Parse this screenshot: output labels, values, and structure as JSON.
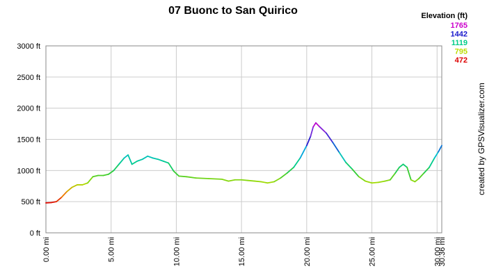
{
  "chart_data": {
    "type": "line",
    "title": "07 Buonc to San Quirico",
    "xlabel": "",
    "ylabel": "",
    "x_unit": "mi",
    "y_unit": "ft",
    "xlim": [
      0,
      30.36
    ],
    "ylim": [
      0,
      3000
    ],
    "x_ticks": [
      0,
      5,
      10,
      15,
      20,
      25,
      30,
      30.36
    ],
    "x_tick_labels": [
      "0.00 mi",
      "5.00 mi",
      "10.00 mi",
      "15.00 mi",
      "20.00 mi",
      "25.00 mi",
      "30.00 mi",
      "30.36 mi"
    ],
    "y_ticks": [
      0,
      500,
      1000,
      1500,
      2000,
      2500,
      3000
    ],
    "y_tick_labels": [
      "0 ft",
      "500 ft",
      "1000 ft",
      "1500 ft",
      "2000 ft",
      "2500 ft",
      "3000 ft"
    ],
    "grid": true,
    "legend": {
      "title": "Elevation (ft)",
      "placement": "top-right",
      "entries": [
        {
          "label": "1765",
          "color": "#cc00cc"
        },
        {
          "label": "1442",
          "color": "#1a1acc"
        },
        {
          "label": "1119",
          "color": "#00cc88"
        },
        {
          "label": "795",
          "color": "#bbdd00"
        },
        {
          "label": "472",
          "color": "#dd0000"
        }
      ]
    },
    "color_scale": {
      "min": 472,
      "max": 1765,
      "stops": [
        {
          "value": 472,
          "color": "#dd0000"
        },
        {
          "value": 633,
          "color": "#ee8800"
        },
        {
          "value": 795,
          "color": "#aadd00"
        },
        {
          "value": 957,
          "color": "#33cc33"
        },
        {
          "value": 1119,
          "color": "#00cc88"
        },
        {
          "value": 1280,
          "color": "#00bbdd"
        },
        {
          "value": 1442,
          "color": "#1a1acc"
        },
        {
          "value": 1603,
          "color": "#6633dd"
        },
        {
          "value": 1765,
          "color": "#cc00cc"
        }
      ]
    },
    "series": [
      {
        "x": [
          0,
          0.4,
          0.8,
          1.2,
          1.6,
          2.0,
          2.4,
          2.8,
          3.2,
          3.6,
          4.0,
          4.4,
          4.8,
          5.2,
          5.6,
          6.0,
          6.3,
          6.6,
          7.0,
          7.4,
          7.8,
          8.2,
          8.6,
          9.0,
          9.4,
          9.8,
          10.2,
          10.8,
          11.5,
          12.5,
          13.5,
          14.0,
          14.5,
          15.0,
          15.5,
          16.0,
          16.5,
          17.0,
          17.5,
          18.0,
          18.5,
          19.0,
          19.5,
          20.0,
          20.3,
          20.5,
          20.7,
          21.0,
          21.5,
          22.0,
          22.5,
          23.0,
          23.5,
          24.0,
          24.5,
          25.0,
          25.5,
          26.0,
          26.4,
          26.8,
          27.1,
          27.4,
          27.7,
          28.0,
          28.3,
          28.6,
          29.0,
          29.4,
          29.8,
          30.1,
          30.36
        ],
        "values": [
          480,
          485,
          500,
          570,
          660,
          730,
          770,
          770,
          800,
          900,
          920,
          920,
          940,
          1000,
          1100,
          1200,
          1250,
          1100,
          1150,
          1180,
          1230,
          1200,
          1180,
          1150,
          1120,
          990,
          910,
          900,
          880,
          870,
          860,
          830,
          850,
          850,
          840,
          830,
          820,
          800,
          820,
          880,
          960,
          1050,
          1200,
          1400,
          1550,
          1700,
          1765,
          1700,
          1600,
          1450,
          1290,
          1130,
          1020,
          900,
          830,
          800,
          810,
          830,
          850,
          960,
          1050,
          1100,
          1050,
          850,
          820,
          870,
          960,
          1050,
          1200,
          1300,
          1400
        ]
      }
    ]
  },
  "credit": "created by GPSVisualizer.com"
}
